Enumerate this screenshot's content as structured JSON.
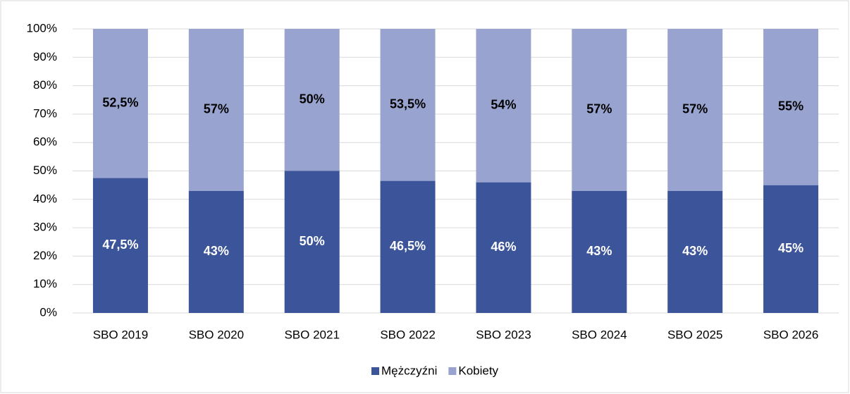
{
  "chart_data": {
    "type": "stacked_bar",
    "categories": [
      "SBO 2019",
      "SBO 2020",
      "SBO 2021",
      "SBO 2022",
      "SBO 2023",
      "SBO 2024",
      "SBO 2025",
      "SBO 2026"
    ],
    "series": [
      {
        "name": "Mężczyźni",
        "color": "#3c559a",
        "values": [
          47.5,
          43,
          50,
          46.5,
          46,
          43,
          43,
          45
        ],
        "value_labels": [
          "47,5%",
          "43%",
          "50%",
          "46,5%",
          "46%",
          "43%",
          "43%",
          "45%"
        ]
      },
      {
        "name": "Kobiety",
        "color": "#98a4cf",
        "values": [
          52.5,
          57,
          50,
          53.5,
          54,
          57,
          57,
          55
        ],
        "value_labels": [
          "52,5%",
          "57%",
          "50%",
          "53,5%",
          "54%",
          "57%",
          "57%",
          "55%"
        ]
      }
    ],
    "ylim": [
      0,
      100
    ],
    "yticks": [
      {
        "value": 0,
        "label": "0%"
      },
      {
        "value": 10,
        "label": "10%"
      },
      {
        "value": 20,
        "label": "20%"
      },
      {
        "value": 30,
        "label": "30%"
      },
      {
        "value": 40,
        "label": "40%"
      },
      {
        "value": 50,
        "label": "50%"
      },
      {
        "value": 60,
        "label": "60%"
      },
      {
        "value": 70,
        "label": "70%"
      },
      {
        "value": 80,
        "label": "80%"
      },
      {
        "value": 90,
        "label": "90%"
      },
      {
        "value": 100,
        "label": "100%"
      }
    ],
    "grid": true,
    "legend": "bottom"
  }
}
